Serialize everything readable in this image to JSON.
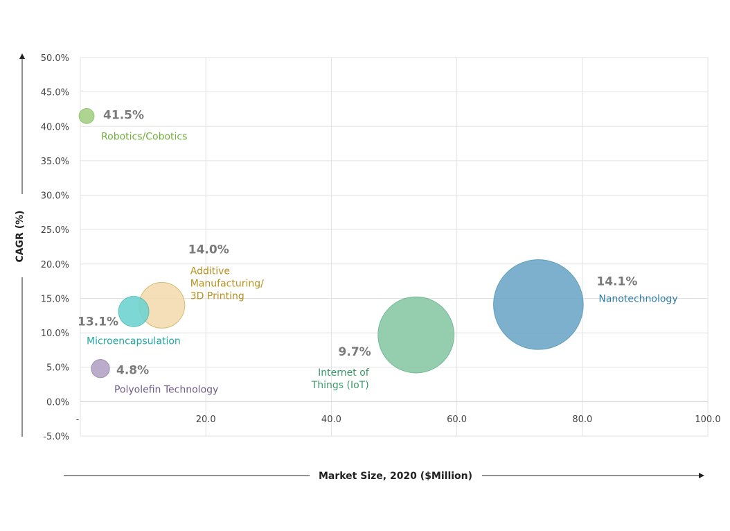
{
  "chart_data": {
    "type": "scatter",
    "subtype": "bubble",
    "xlabel": "Market Size, 2020 ($Million)",
    "ylabel": "CAGR (%)",
    "xlim": [
      0,
      100
    ],
    "ylim": [
      -5,
      50
    ],
    "x_ticks": [
      {
        "value": 0,
        "label": "-"
      },
      {
        "value": 20,
        "label": "20.0"
      },
      {
        "value": 40,
        "label": "40.0"
      },
      {
        "value": 60,
        "label": "60.0"
      },
      {
        "value": 80,
        "label": "80.0"
      },
      {
        "value": 100,
        "label": "100.0"
      }
    ],
    "y_ticks": [
      {
        "value": 50,
        "label": "50.0%"
      },
      {
        "value": 45,
        "label": "45.0%"
      },
      {
        "value": 40,
        "label": "40.0%"
      },
      {
        "value": 35,
        "label": "35.0%"
      },
      {
        "value": 30,
        "label": "30.0%"
      },
      {
        "value": 25,
        "label": "25.0%"
      },
      {
        "value": 20,
        "label": "20.0%"
      },
      {
        "value": 15,
        "label": "15.0%"
      },
      {
        "value": 10,
        "label": "10.0%"
      },
      {
        "value": 5,
        "label": "5.0%"
      },
      {
        "value": 0,
        "label": "0.0%"
      },
      {
        "value": -5,
        "label": "-5.0%"
      }
    ],
    "grid": true,
    "points": [
      {
        "name": "Robotics/Cobotics",
        "lines": [
          "Robotics/Cobotics"
        ],
        "value_label": "41.5%",
        "x": 1.0,
        "y": 41.5,
        "size": 1.0,
        "color": "#a5cf86",
        "label_color": "#6fae3c"
      },
      {
        "name": "Additive Manufacturing/ 3D Printing",
        "lines": [
          "Additive",
          "Manufacturing/",
          "3D Printing"
        ],
        "value_label": "14.0%",
        "x": 13.0,
        "y": 14.0,
        "size": 3.0,
        "color": "#f3dcb0",
        "label_color": "#b8901e"
      },
      {
        "name": "Microencapsulation",
        "lines": [
          "Microencapsulation"
        ],
        "value_label": "13.1%",
        "x": 8.5,
        "y": 13.1,
        "size": 2.0,
        "color": "#6fd3cf",
        "label_color": "#22a8a3"
      },
      {
        "name": "Polyolefin Technology",
        "lines": [
          "Polyolefin Technology"
        ],
        "value_label": "4.8%",
        "x": 3.2,
        "y": 4.8,
        "size": 1.2,
        "color": "#b4a3c6",
        "label_color": "#6f5a88"
      },
      {
        "name": "Internet of Things (IoT)",
        "lines": [
          "Internet of",
          "Things (IoT)"
        ],
        "value_label": "9.7%",
        "x": 53.5,
        "y": 9.7,
        "size": 5.0,
        "color": "#8ac8a6",
        "label_color": "#3a9a6a"
      },
      {
        "name": "Nanotechnology",
        "lines": [
          "Nanotechnology"
        ],
        "value_label": "14.1%",
        "x": 73.0,
        "y": 14.1,
        "size": 5.9,
        "color": "#6ea7c6",
        "label_color": "#2f7fa6"
      }
    ]
  }
}
